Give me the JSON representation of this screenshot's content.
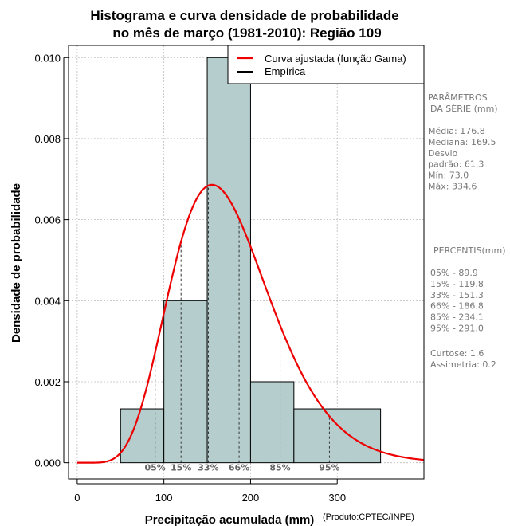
{
  "chart_data": {
    "type": "bar",
    "title_line1": "Histograma e curva densidade de probabilidade",
    "title_line2": "no mês de março (1981-2010): Região 109",
    "xlabel": "Precipitação acumulada (mm)",
    "ylabel": "Densidade de probabilidade",
    "credit": "(Produto:CPTEC/INPE)",
    "xlim": [
      -10,
      400
    ],
    "ylim": [
      -0.0004,
      0.0103
    ],
    "x_ticks": [
      0,
      100,
      200,
      300
    ],
    "x_tick_labels": [
      "0",
      "100",
      "200",
      "300"
    ],
    "y_ticks": [
      0.0,
      0.002,
      0.004,
      0.006,
      0.008,
      0.01
    ],
    "y_tick_labels": [
      "0.000",
      "0.002",
      "0.004",
      "0.006",
      "0.008",
      "0.010"
    ],
    "bins": [
      {
        "start": 50,
        "end": 100,
        "density": 0.00133
      },
      {
        "start": 100,
        "end": 150,
        "density": 0.004
      },
      {
        "start": 150,
        "end": 200,
        "density": 0.01
      },
      {
        "start": 200,
        "end": 250,
        "density": 0.002
      },
      {
        "start": 250,
        "end": 350,
        "density": 0.00133
      }
    ],
    "fitted_curve": {
      "distribution": "gamma",
      "mean": 176.8,
      "sd": 61.3
    },
    "percentile_lines": [
      {
        "label": "05%",
        "value": 89.9
      },
      {
        "label": "15%",
        "value": 119.8
      },
      {
        "label": "33%",
        "value": 151.3
      },
      {
        "label": "66%",
        "value": 186.8
      },
      {
        "label": "85%",
        "value": 234.1
      },
      {
        "label": "95%",
        "value": 291.0
      }
    ],
    "legend": {
      "position": "top-right",
      "entries": [
        {
          "label": "Curva ajustada (função Gama)",
          "color": "#ee0000"
        },
        {
          "label": "Empírica",
          "color": "#000000"
        }
      ]
    },
    "colors": {
      "bar_fill": "#b5cdcd",
      "curve": "#ee0000",
      "grid": "#bbbbbb",
      "side_text": "#777777"
    },
    "side_panel": {
      "params_header": [
        "PARÂMETROS",
        "DA SÉRIE (mm)"
      ],
      "params": [
        "Média:  176.8",
        "Mediana:  169.5",
        "Desvio",
        "padrão:  61.3",
        "Mín:  73.0",
        "Máx:  334.6"
      ],
      "percentiles_header": "PERCENTIS(mm)",
      "percentiles": [
        "05% -  89.9",
        "15% -  119.8",
        "33% -  151.3",
        "66% -  186.8",
        "85% -  234.1",
        "95% -  291.0"
      ],
      "stats": [
        "Curtose:  1.6",
        "Assimetria:  0.2"
      ]
    }
  }
}
